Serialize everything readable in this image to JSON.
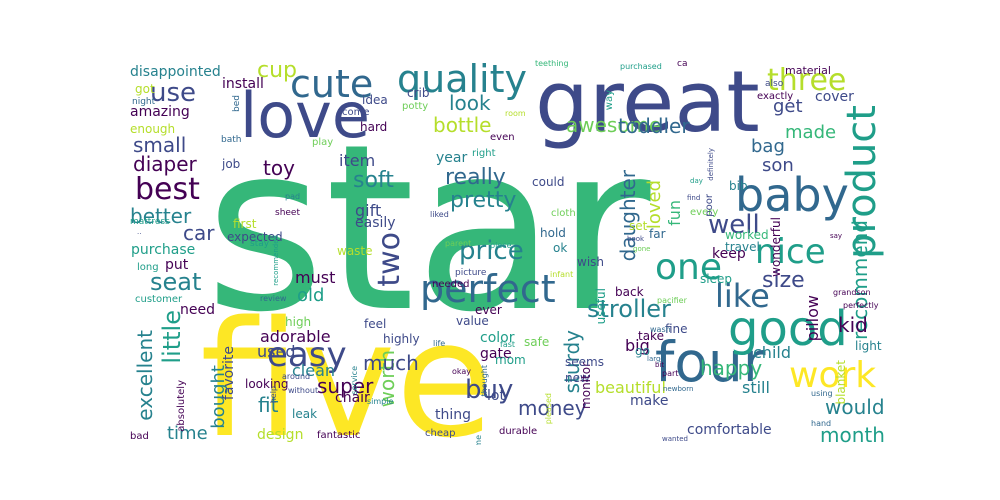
{
  "palette": {
    "dark_purple": "#440154",
    "indigo": "#3e4a89",
    "blue": "#31688e",
    "teal": "#26828e",
    "green_teal": "#1f9e89",
    "green": "#35b779",
    "light_green": "#6ece58",
    "lime": "#b5de2b",
    "yellow": "#fde725"
  },
  "words": [
    {
      "text": "star",
      "color": "green"
    },
    {
      "text": "five",
      "color": "yellow"
    },
    {
      "text": "great",
      "color": "indigo"
    },
    {
      "text": "love",
      "color": "indigo"
    },
    {
      "text": "four",
      "color": "blue"
    },
    {
      "text": "good",
      "color": "green_teal"
    },
    {
      "text": "product",
      "color": "green_teal"
    },
    {
      "text": "baby",
      "color": "blue"
    },
    {
      "text": "cute",
      "color": "blue"
    },
    {
      "text": "quality",
      "color": "teal"
    },
    {
      "text": "one",
      "color": "green_teal"
    },
    {
      "text": "perfect",
      "color": "blue"
    },
    {
      "text": "like",
      "color": "blue"
    },
    {
      "text": "nice",
      "color": "green_teal"
    },
    {
      "text": "easy",
      "color": "indigo"
    },
    {
      "text": "work",
      "color": "yellow"
    },
    {
      "text": "three",
      "color": "lime"
    },
    {
      "text": "best",
      "color": "dark_purple"
    },
    {
      "text": "two",
      "color": "indigo"
    },
    {
      "text": "use",
      "color": "indigo"
    },
    {
      "text": "price",
      "color": "teal"
    },
    {
      "text": "buy",
      "color": "indigo"
    },
    {
      "text": "well",
      "color": "indigo"
    },
    {
      "text": "seat",
      "color": "teal"
    },
    {
      "text": "little",
      "color": "green_teal"
    },
    {
      "text": "stroller",
      "color": "teal"
    },
    {
      "text": "cup",
      "color": "lime"
    },
    {
      "text": "soft",
      "color": "teal"
    },
    {
      "text": "pretty",
      "color": "teal"
    },
    {
      "text": "really",
      "color": "blue"
    },
    {
      "text": "awesome",
      "color": "light_green"
    },
    {
      "text": "recommend",
      "color": "green_teal"
    },
    {
      "text": "toddler",
      "color": "blue"
    },
    {
      "text": "daughter",
      "color": "blue"
    },
    {
      "text": "excellent",
      "color": "teal"
    },
    {
      "text": "size",
      "color": "indigo"
    },
    {
      "text": "bottle",
      "color": "lime"
    },
    {
      "text": "look",
      "color": "teal"
    },
    {
      "text": "small",
      "color": "indigo"
    },
    {
      "text": "diaper",
      "color": "dark_purple"
    },
    {
      "text": "better",
      "color": "teal"
    },
    {
      "text": "car",
      "color": "indigo"
    },
    {
      "text": "toy",
      "color": "dark_purple"
    },
    {
      "text": "worth",
      "color": "light_green"
    },
    {
      "text": "super",
      "color": "dark_purple"
    },
    {
      "text": "fit",
      "color": "teal"
    },
    {
      "text": "much",
      "color": "indigo"
    },
    {
      "text": "money",
      "color": "indigo"
    },
    {
      "text": "sturdy",
      "color": "teal"
    },
    {
      "text": "happy",
      "color": "green"
    },
    {
      "text": "would",
      "color": "teal"
    },
    {
      "text": "month",
      "color": "green_teal"
    },
    {
      "text": "kid",
      "color": "dark_purple"
    },
    {
      "text": "bought",
      "color": "teal"
    },
    {
      "text": "time",
      "color": "teal"
    },
    {
      "text": "old",
      "color": "green_teal"
    },
    {
      "text": "must",
      "color": "dark_purple"
    },
    {
      "text": "son",
      "color": "indigo"
    },
    {
      "text": "made",
      "color": "green"
    },
    {
      "text": "get",
      "color": "indigo"
    },
    {
      "text": "bag",
      "color": "blue"
    },
    {
      "text": "loved",
      "color": "lime"
    },
    {
      "text": "fun",
      "color": "green"
    },
    {
      "text": "item",
      "color": "indigo"
    },
    {
      "text": "gift",
      "color": "indigo"
    },
    {
      "text": "adorable",
      "color": "dark_purple"
    },
    {
      "text": "used",
      "color": "indigo"
    },
    {
      "text": "clean",
      "color": "teal"
    },
    {
      "text": "disappointed",
      "color": "teal"
    },
    {
      "text": "install",
      "color": "dark_purple"
    },
    {
      "text": "amazing",
      "color": "dark_purple"
    },
    {
      "text": "got",
      "color": "lime"
    },
    {
      "text": "enough",
      "color": "lime"
    },
    {
      "text": "year",
      "color": "teal"
    },
    {
      "text": "keep",
      "color": "dark_purple"
    },
    {
      "text": "easily",
      "color": "indigo"
    },
    {
      "text": "purchase",
      "color": "green_teal"
    },
    {
      "text": "put",
      "color": "dark_purple"
    },
    {
      "text": "need",
      "color": "dark_purple"
    },
    {
      "text": "favorite",
      "color": "indigo"
    },
    {
      "text": "thing",
      "color": "indigo"
    },
    {
      "text": "color",
      "color": "green_teal"
    },
    {
      "text": "gate",
      "color": "dark_purple"
    },
    {
      "text": "big",
      "color": "dark_purple"
    },
    {
      "text": "child",
      "color": "teal"
    },
    {
      "text": "pillow",
      "color": "dark_purple"
    },
    {
      "text": "still",
      "color": "teal"
    },
    {
      "text": "beautiful",
      "color": "lime"
    },
    {
      "text": "make",
      "color": "indigo"
    },
    {
      "text": "comfortable",
      "color": "indigo"
    },
    {
      "text": "chair",
      "color": "dark_purple"
    },
    {
      "text": "lot",
      "color": "indigo"
    },
    {
      "text": "design",
      "color": "lime"
    },
    {
      "text": "cover",
      "color": "indigo"
    },
    {
      "text": "material",
      "color": "dark_purple"
    },
    {
      "text": "wonderful",
      "color": "dark_purple"
    },
    {
      "text": "travel",
      "color": "teal"
    },
    {
      "text": "sleep",
      "color": "green_teal"
    },
    {
      "text": "light",
      "color": "teal"
    },
    {
      "text": "blanket",
      "color": "lime"
    },
    {
      "text": "take",
      "color": "dark_purple"
    },
    {
      "text": "go",
      "color": "teal"
    },
    {
      "text": "fine",
      "color": "indigo"
    },
    {
      "text": "new",
      "color": "indigo"
    },
    {
      "text": "back",
      "color": "dark_purple"
    },
    {
      "text": "monitor",
      "color": "dark_purple"
    },
    {
      "text": "set",
      "color": "lime"
    },
    {
      "text": "far",
      "color": "blue"
    },
    {
      "text": "ever",
      "color": "dark_purple"
    },
    {
      "text": "value",
      "color": "indigo"
    },
    {
      "text": "hold",
      "color": "blue"
    },
    {
      "text": "could",
      "color": "indigo"
    },
    {
      "text": "ok",
      "color": "teal"
    },
    {
      "text": "mom",
      "color": "green_teal"
    },
    {
      "text": "safe",
      "color": "light_green"
    },
    {
      "text": "seems",
      "color": "indigo"
    },
    {
      "text": "highly",
      "color": "indigo"
    },
    {
      "text": "high",
      "color": "light_green"
    },
    {
      "text": "leak",
      "color": "teal"
    },
    {
      "text": "looking",
      "color": "dark_purple"
    },
    {
      "text": "expected",
      "color": "indigo"
    },
    {
      "text": "first",
      "color": "lime"
    },
    {
      "text": "job",
      "color": "indigo"
    },
    {
      "text": "waste",
      "color": "lime"
    },
    {
      "text": "feel",
      "color": "indigo"
    },
    {
      "text": "play",
      "color": "light_green"
    },
    {
      "text": "idea",
      "color": "indigo"
    },
    {
      "text": "hard",
      "color": "dark_purple"
    },
    {
      "text": "come",
      "color": "indigo"
    },
    {
      "text": "crib",
      "color": "indigo"
    },
    {
      "text": "potty",
      "color": "light_green"
    },
    {
      "text": "even",
      "color": "dark_purple"
    },
    {
      "text": "right",
      "color": "green_teal"
    },
    {
      "text": "cloth",
      "color": "light_green"
    },
    {
      "text": "useful",
      "color": "green_teal"
    },
    {
      "text": "worked",
      "color": "green"
    },
    {
      "text": "every",
      "color": "light_green"
    },
    {
      "text": "bib",
      "color": "teal"
    },
    {
      "text": "poor",
      "color": "indigo"
    },
    {
      "text": "way",
      "color": "green_teal"
    },
    {
      "text": "exactly",
      "color": "dark_purple"
    },
    {
      "text": "also",
      "color": "indigo"
    },
    {
      "text": "wish",
      "color": "indigo"
    },
    {
      "text": "durable",
      "color": "dark_purple"
    },
    {
      "text": "cheap",
      "color": "indigo"
    },
    {
      "text": "fantastic",
      "color": "dark_purple"
    },
    {
      "text": "bad",
      "color": "dark_purple"
    },
    {
      "text": "absolutely",
      "color": "dark_purple"
    },
    {
      "text": "customer",
      "color": "green_teal"
    },
    {
      "text": "long",
      "color": "green_teal"
    },
    {
      "text": "stay",
      "color": "green_teal"
    },
    {
      "text": "review",
      "color": "blue"
    },
    {
      "text": "around",
      "color": "indigo"
    },
    {
      "text": "help",
      "color": "indigo"
    },
    {
      "text": "without",
      "color": "indigo"
    },
    {
      "text": "service",
      "color": "teal"
    },
    {
      "text": "simple",
      "color": "teal"
    },
    {
      "text": "okay",
      "color": "dark_purple"
    },
    {
      "text": "thought",
      "color": "blue"
    },
    {
      "text": "pleased",
      "color": "lime"
    },
    {
      "text": "wanted",
      "color": "indigo"
    },
    {
      "text": "hand",
      "color": "blue"
    },
    {
      "text": "using",
      "color": "blue"
    },
    {
      "text": "part",
      "color": "dark_purple"
    },
    {
      "text": "newborn",
      "color": "blue"
    },
    {
      "text": "large",
      "color": "blue"
    },
    {
      "text": "bit",
      "color": "dark_purple"
    },
    {
      "text": "perfectly",
      "color": "dark_purple"
    },
    {
      "text": "grandson",
      "color": "dark_purple"
    },
    {
      "text": "say",
      "color": "dark_purple"
    },
    {
      "text": "wash",
      "color": "blue"
    },
    {
      "text": "pacifier",
      "color": "light_green"
    },
    {
      "text": "infant",
      "color": "lime"
    },
    {
      "text": "picture",
      "color": "indigo"
    },
    {
      "text": "needed",
      "color": "dark_purple"
    },
    {
      "text": "parent",
      "color": "light_green"
    },
    {
      "text": "piece",
      "color": "green_teal"
    },
    {
      "text": "liked",
      "color": "indigo"
    },
    {
      "text": "came",
      "color": "teal"
    },
    {
      "text": "fast",
      "color": "green_teal"
    },
    {
      "text": "life",
      "color": "blue"
    },
    {
      "text": "sheet",
      "color": "dark_purple"
    },
    {
      "text": "mattress",
      "color": "green_teal"
    },
    {
      "text": "pad",
      "color": "teal"
    },
    {
      "text": "bath",
      "color": "blue"
    },
    {
      "text": "night",
      "color": "blue"
    },
    {
      "text": "bed",
      "color": "blue"
    },
    {
      "text": "room",
      "color": "lime"
    },
    {
      "text": "teething",
      "color": "green"
    },
    {
      "text": "purchased",
      "color": "green_teal"
    },
    {
      "text": "ca",
      "color": "dark_purple"
    },
    {
      "text": "day",
      "color": "green_teal"
    },
    {
      "text": "find",
      "color": "indigo"
    },
    {
      "text": "definitely",
      "color": "indigo"
    },
    {
      "text": "recommended",
      "color": "green_teal"
    },
    {
      "text": "book",
      "color": "indigo"
    },
    {
      "text": "gone",
      "color": "light_green"
    },
    {
      "text": "..",
      "color": "indigo"
    }
  ]
}
